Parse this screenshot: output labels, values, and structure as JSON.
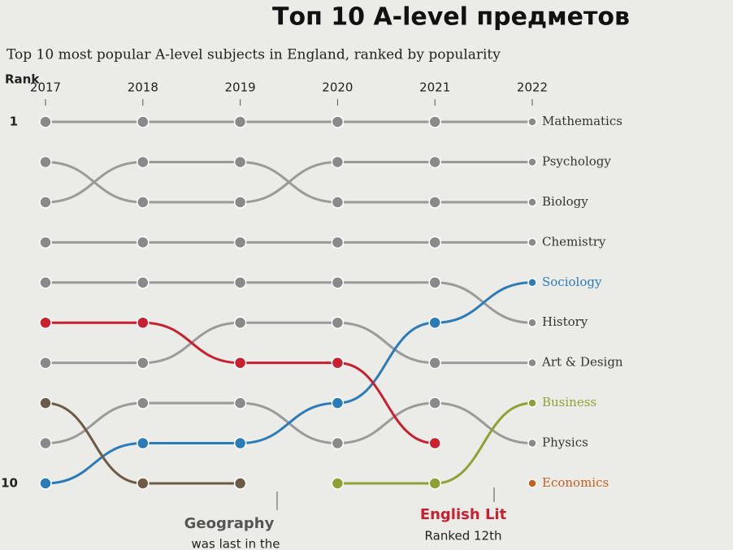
{
  "chart_data": {
    "type": "bump",
    "title": "Топ 10 A-level предметов",
    "subtitle": "Top 10 most popular A-level subjects in England, ranked by popularity",
    "ylabel": "Rank",
    "x": [
      2017,
      2018,
      2019,
      2020,
      2021,
      2022
    ],
    "xlim": [
      2017,
      2022
    ],
    "xticks": [
      2017,
      2018,
      2019,
      2020,
      2021,
      2022
    ],
    "ylim": [
      1,
      10
    ],
    "y_inverted": true,
    "yticks": [
      1,
      10
    ],
    "series": [
      {
        "name": "Mathematics",
        "color": "#9a9a9a",
        "values": [
          1,
          1,
          1,
          1,
          1,
          1
        ]
      },
      {
        "name": "Psychology",
        "color": "#9a9a9a",
        "values": [
          2,
          3,
          3,
          2,
          2,
          2
        ]
      },
      {
        "name": "Biology",
        "color": "#9a9a9a",
        "values": [
          3,
          2,
          2,
          3,
          3,
          3
        ]
      },
      {
        "name": "Chemistry",
        "color": "#9a9a9a",
        "values": [
          4,
          4,
          4,
          4,
          4,
          4
        ]
      },
      {
        "name": "Sociology",
        "color": "#2b7bb9",
        "values": [
          10,
          9,
          9,
          8,
          6,
          5
        ]
      },
      {
        "name": "History",
        "color": "#9a9a9a",
        "values": [
          5,
          5,
          5,
          5,
          5,
          6
        ]
      },
      {
        "name": "Art & Design",
        "color": "#9a9a9a",
        "values": [
          7,
          7,
          6,
          6,
          7,
          7
        ]
      },
      {
        "name": "Business",
        "color": "#8ea135",
        "values": [
          null,
          null,
          null,
          10,
          10,
          8
        ]
      },
      {
        "name": "Physics",
        "color": "#9a9a9a",
        "values": [
          9,
          8,
          8,
          9,
          8,
          9
        ]
      },
      {
        "name": "Economics",
        "color": "#c65f1b",
        "values": [
          null,
          null,
          null,
          null,
          null,
          10
        ]
      },
      {
        "name": "English Lit",
        "color": "#c8202f",
        "values": [
          6,
          6,
          7,
          7,
          9,
          null
        ]
      },
      {
        "name": "Geography",
        "color": "#6e5a45",
        "values": [
          8,
          10,
          10,
          null,
          null,
          null
        ]
      }
    ],
    "annotations": [
      "Geography",
      "was last in the",
      "English Lit",
      "Ranked 12th"
    ]
  }
}
